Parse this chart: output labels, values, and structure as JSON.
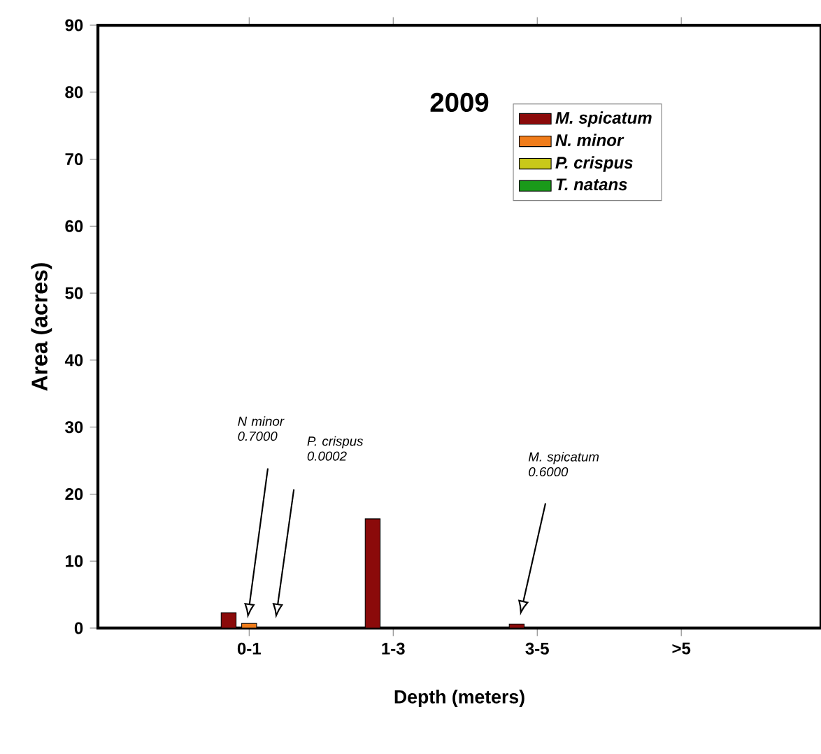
{
  "chart_data": {
    "type": "bar",
    "title": "2009",
    "xlabel": "Depth (meters)",
    "ylabel": "Area (acres)",
    "categories": [
      "0-1",
      "1-3",
      "3-5",
      ">5"
    ],
    "series": [
      {
        "name": "M. spicatum",
        "color": "#8b0a0a",
        "values": [
          2.3,
          16.3,
          0.6,
          null
        ]
      },
      {
        "name": "N. minor",
        "color": "#f07c1a",
        "values": [
          0.7,
          null,
          null,
          null
        ]
      },
      {
        "name": "P. crispus",
        "color": "#c8c81a",
        "values": [
          0.0002,
          null,
          null,
          null
        ]
      },
      {
        "name": "T. natans",
        "color": "#1a9a1a",
        "values": [
          null,
          null,
          null,
          null
        ]
      }
    ],
    "ylim": [
      0,
      90
    ],
    "yticks": [
      0,
      10,
      20,
      30,
      40,
      50,
      60,
      70,
      80,
      90
    ],
    "legend": "top right",
    "grid": false,
    "annotations": [
      "N minor 0.7000",
      "P. crispus 0.0002",
      "M. spicatum 0.6000"
    ]
  }
}
